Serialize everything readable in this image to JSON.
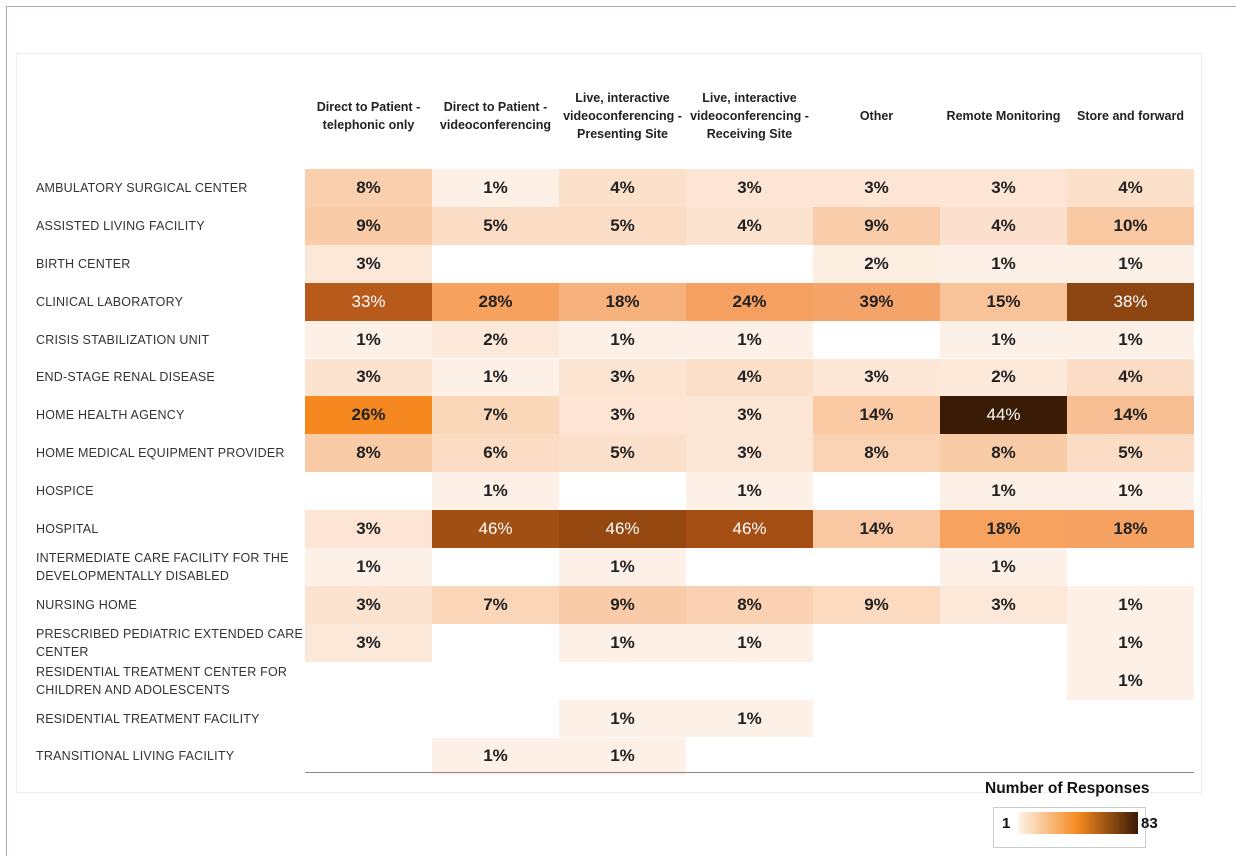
{
  "chart_data": {
    "type": "heatmap",
    "columns": [
      "Direct to Patient - telephonic only",
      "Direct to Patient - videoconferencing",
      "Live, interactive videoconferencing - Presenting Site",
      "Live, interactive videoconferencing - Receiving Site",
      "Other",
      "Remote Monitoring",
      "Store and forward"
    ],
    "categories": [
      "AMBULATORY SURGICAL CENTER",
      "ASSISTED LIVING FACILITY",
      "BIRTH CENTER",
      "CLINICAL LABORATORY",
      "CRISIS STABILIZATION UNIT",
      "END-STAGE RENAL DISEASE",
      "HOME HEALTH AGENCY",
      "HOME MEDICAL EQUIPMENT PROVIDER",
      "HOSPICE",
      "HOSPITAL",
      "INTERMEDIATE CARE FACILITY FOR THE DEVELOPMENTALLY DISABLED",
      "NURSING HOME",
      "PRESCRIBED PEDIATRIC EXTENDED CARE CENTER",
      "RESIDENTIAL TREATMENT CENTER FOR CHILDREN AND ADOLESCENTS",
      "RESIDENTIAL TREATMENT FACILITY",
      "TRANSITIONAL LIVING FACILITY"
    ],
    "values": [
      [
        8,
        1,
        4,
        3,
        3,
        3,
        4
      ],
      [
        9,
        5,
        5,
        4,
        9,
        4,
        10
      ],
      [
        3,
        null,
        null,
        null,
        2,
        1,
        1
      ],
      [
        33,
        28,
        18,
        24,
        39,
        15,
        38
      ],
      [
        1,
        2,
        1,
        1,
        null,
        1,
        1
      ],
      [
        3,
        1,
        3,
        4,
        3,
        2,
        4
      ],
      [
        26,
        7,
        3,
        3,
        14,
        44,
        14
      ],
      [
        8,
        6,
        5,
        3,
        8,
        8,
        5
      ],
      [
        null,
        1,
        null,
        1,
        null,
        1,
        1
      ],
      [
        3,
        46,
        46,
        46,
        14,
        18,
        18
      ],
      [
        1,
        null,
        1,
        null,
        null,
        1,
        null
      ],
      [
        3,
        7,
        9,
        8,
        9,
        3,
        1
      ],
      [
        3,
        null,
        1,
        1,
        null,
        null,
        1
      ],
      [
        null,
        null,
        null,
        null,
        null,
        null,
        1
      ],
      [
        null,
        null,
        1,
        1,
        null,
        null,
        null
      ],
      [
        null,
        1,
        1,
        null,
        null,
        null,
        null
      ]
    ],
    "value_labels": [
      [
        "8%",
        "1%",
        "4%",
        "3%",
        "3%",
        "3%",
        "4%"
      ],
      [
        "9%",
        "5%",
        "5%",
        "4%",
        "9%",
        "4%",
        "10%"
      ],
      [
        "3%",
        null,
        null,
        null,
        "2%",
        "1%",
        "1%"
      ],
      [
        "33%",
        "28%",
        "18%",
        "24%",
        "39%",
        "15%",
        "38%"
      ],
      [
        "1%",
        "2%",
        "1%",
        "1%",
        null,
        "1%",
        "1%"
      ],
      [
        "3%",
        "1%",
        "3%",
        "4%",
        "3%",
        "2%",
        "4%"
      ],
      [
        "26%",
        "7%",
        "3%",
        "3%",
        "14%",
        "44%",
        "14%"
      ],
      [
        "8%",
        "6%",
        "5%",
        "3%",
        "8%",
        "8%",
        "5%"
      ],
      [
        null,
        "1%",
        null,
        "1%",
        null,
        "1%",
        "1%"
      ],
      [
        "3%",
        "46%",
        "46%",
        "46%",
        "14%",
        "18%",
        "18%"
      ],
      [
        "1%",
        null,
        "1%",
        null,
        null,
        "1%",
        null
      ],
      [
        "3%",
        "7%",
        "9%",
        "8%",
        "9%",
        "3%",
        "1%"
      ],
      [
        "3%",
        null,
        "1%",
        "1%",
        null,
        null,
        "1%"
      ],
      [
        null,
        null,
        null,
        null,
        null,
        null,
        "1%"
      ],
      [
        null,
        null,
        "1%",
        "1%",
        null,
        null,
        null
      ],
      [
        null,
        "1%",
        "1%",
        null,
        null,
        null,
        null
      ]
    ],
    "colors": [
      [
        "#f9cfae",
        "#fdf0e6",
        "#fbe0ca",
        "#fce5d4",
        "#fce5d4",
        "#fce5d4",
        "#fbe0ca"
      ],
      [
        "#f9cba7",
        "#fbdcc4",
        "#fbdcc4",
        "#fce3d0",
        "#f9cdaa",
        "#fbe1cd",
        "#f9c9a3"
      ],
      [
        "#fce8d8",
        null,
        null,
        null,
        "#fdeee2",
        "#fdf0e6",
        "#fdf0e6"
      ],
      [
        "#b85a1c",
        "#f7a15f",
        "#f7b17d",
        "#f5a060",
        "#f4a369",
        "#f9c39a",
        "#8d4511"
      ],
      [
        "#fdf0e6",
        "#fce9da",
        "#fdf0e6",
        "#fdf0e6",
        null,
        "#fdf0e6",
        "#fdf0e6"
      ],
      [
        "#fbe3d0",
        "#fdf0e6",
        "#fbe4d2",
        "#fbdfc9",
        "#fce7d6",
        "#fce9da",
        "#fbdcc4"
      ],
      [
        "#f5891f",
        "#fad7b9",
        "#fce5d4",
        "#fce6d5",
        "#f9caa4",
        "#3a1b05",
        "#f8bf94"
      ],
      [
        "#f9cba7",
        "#fbddc6",
        "#fbe0cb",
        "#fce6d5",
        "#fad3b4",
        "#f9cca8",
        "#fbddc6"
      ],
      [
        null,
        "#fdf0e6",
        null,
        "#fdf0e6",
        null,
        "#fdf0e6",
        "#fdf0e6"
      ],
      [
        "#fce5d4",
        "#a24f13",
        "#94480f",
        "#a54f14",
        "#f9c8a2",
        "#f7a25e",
        "#f5a162"
      ],
      [
        "#fdf0e6",
        null,
        "#fdf0e6",
        null,
        null,
        "#fdf0e6",
        null
      ],
      [
        "#fce3d0",
        "#fad5b8",
        "#f9cba8",
        "#fad2b3",
        "#fbdac0",
        "#fce8d8",
        "#fdf0e6"
      ],
      [
        "#fce8d8",
        null,
        "#fdf0e6",
        "#fdf0e6",
        null,
        null,
        "#fdf0e6"
      ],
      [
        null,
        null,
        null,
        null,
        null,
        null,
        "#fdf0e6"
      ],
      [
        null,
        null,
        "#fdf0e6",
        "#fdf0e6",
        null,
        null,
        null
      ],
      [
        null,
        "#fdf0e6",
        "#fdf0e6",
        null,
        null,
        null,
        null
      ]
    ],
    "colorbar": {
      "title": "Number of Responses",
      "min": 1,
      "max": 83,
      "colors": [
        "#fdf3ea",
        "#f5891f",
        "#3a1b05"
      ]
    }
  }
}
